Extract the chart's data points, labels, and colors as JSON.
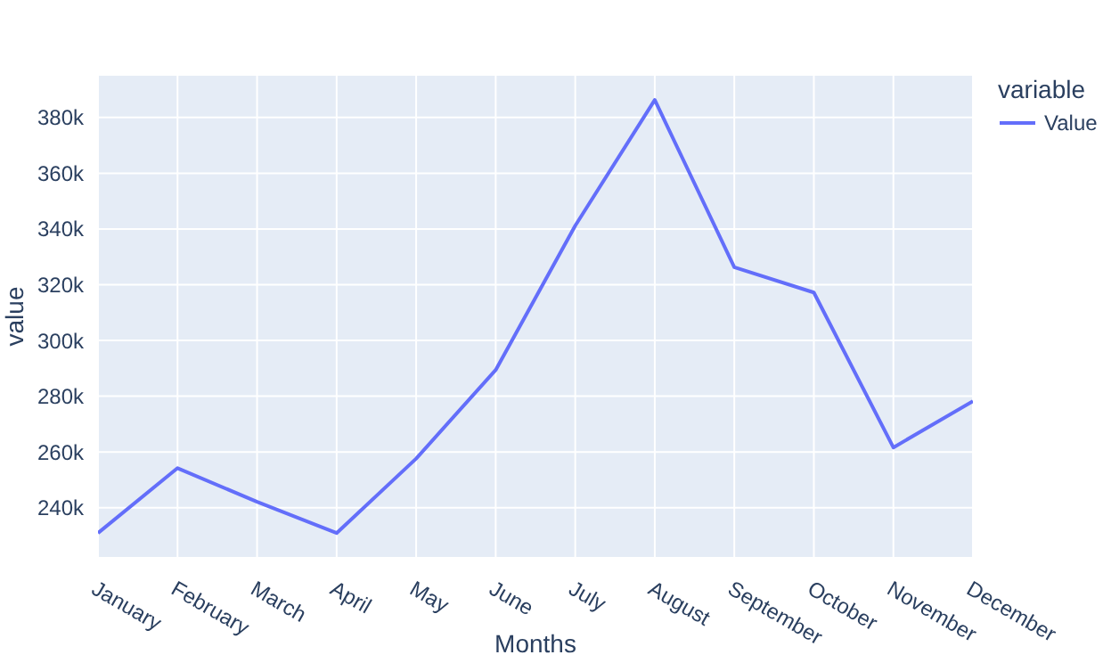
{
  "chart_data": {
    "type": "line",
    "xlabel": "Months",
    "ylabel": "value",
    "legend_title": "variable",
    "categories": [
      "January",
      "February",
      "March",
      "April",
      "May",
      "June",
      "July",
      "August",
      "September",
      "October",
      "November",
      "December"
    ],
    "series": [
      {
        "name": "Value",
        "color": "#636efa",
        "values": [
          230900,
          254200,
          242100,
          230900,
          257600,
          289400,
          341200,
          386300,
          326300,
          317200,
          261600,
          278200
        ]
      }
    ],
    "ylim": [
      222000,
      395300
    ],
    "yticks": [
      {
        "value": 240000,
        "label": "240k"
      },
      {
        "value": 260000,
        "label": "260k"
      },
      {
        "value": 280000,
        "label": "280k"
      },
      {
        "value": 300000,
        "label": "300k"
      },
      {
        "value": 320000,
        "label": "320k"
      },
      {
        "value": 340000,
        "label": "340k"
      },
      {
        "value": 360000,
        "label": "360k"
      },
      {
        "value": 380000,
        "label": "380k"
      }
    ],
    "grid": true,
    "legend": "top right",
    "marker": "none",
    "line_style": "solid"
  }
}
